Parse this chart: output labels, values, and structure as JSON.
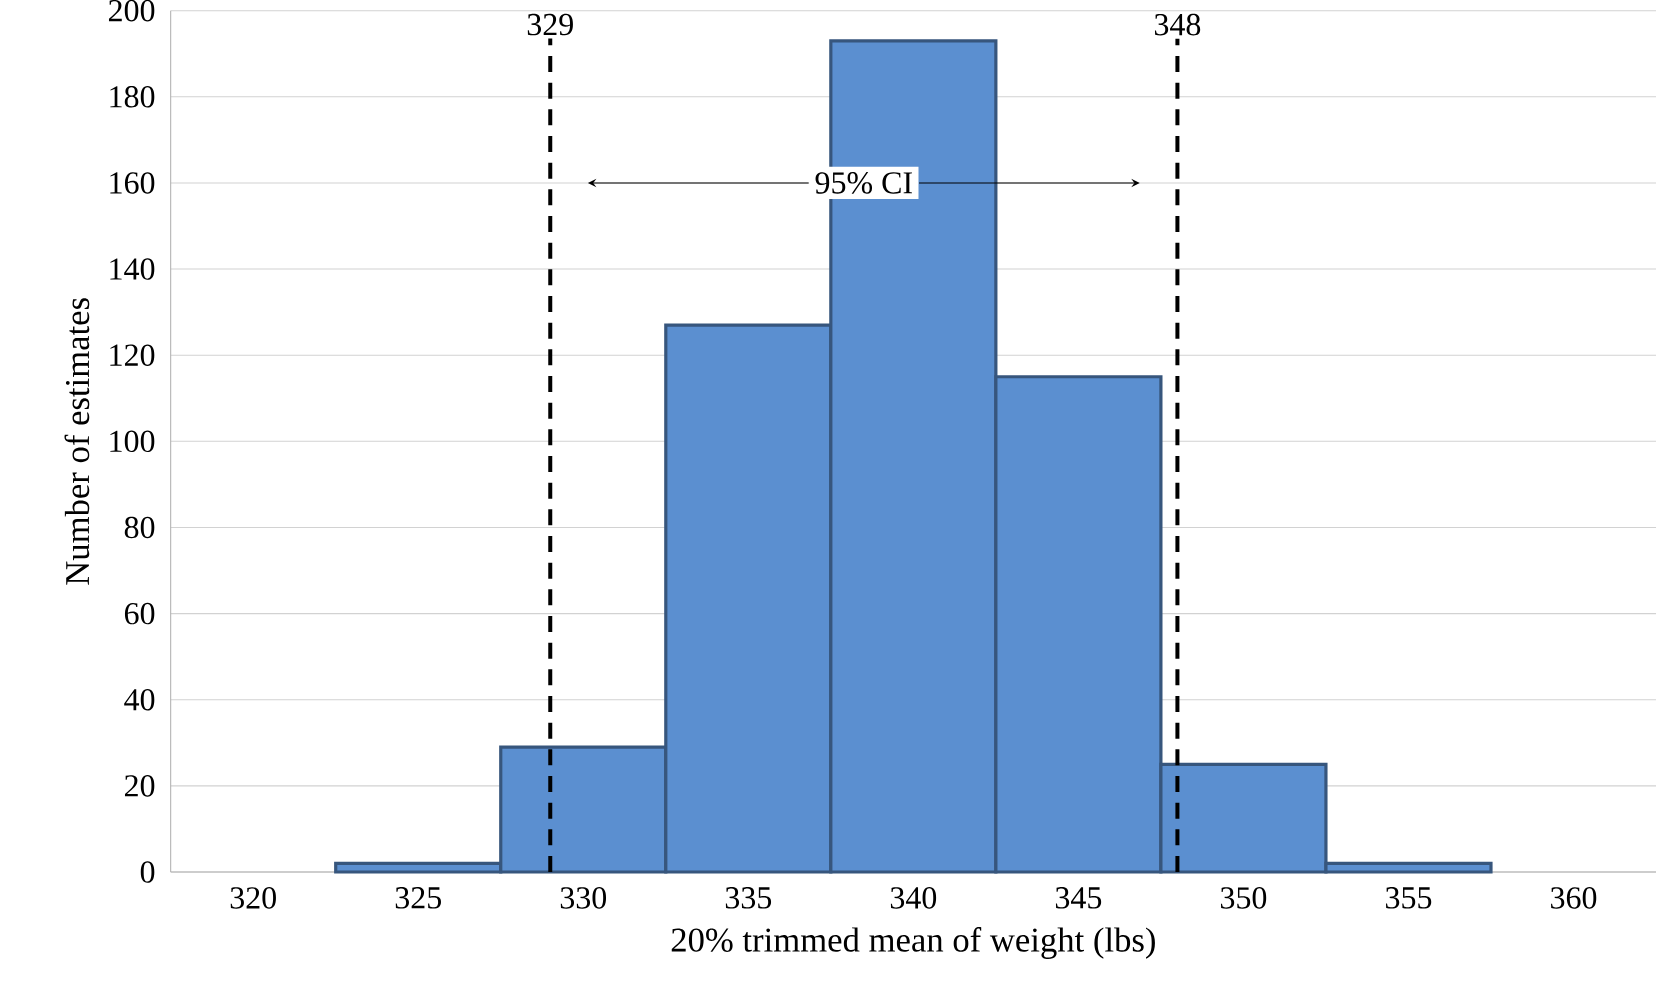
{
  "chart_data": {
    "type": "histogram",
    "xlabel": "20% trimmed mean of weight (lbs)",
    "ylabel": "Number of estimates",
    "bins": [
      322.5,
      327.5,
      332.5,
      337.5,
      342.5,
      347.5,
      352.5,
      357.5
    ],
    "values": [
      2,
      29,
      127,
      193,
      115,
      25,
      2
    ],
    "color": "#5b8fd0",
    "xlim": [
      317.5,
      362.5
    ],
    "xticks": [
      320,
      325,
      330,
      335,
      340,
      345,
      350,
      355,
      360
    ],
    "ylim": [
      0,
      200
    ],
    "yticks": [
      0,
      20,
      40,
      60,
      80,
      100,
      120,
      140,
      160,
      180,
      200
    ],
    "grid": "y",
    "ref_lines": [
      {
        "axis": "x",
        "value": 329,
        "label": "329",
        "line_style": "dashed"
      },
      {
        "axis": "x",
        "value": 348,
        "label": "348",
        "line_style": "dashed"
      }
    ],
    "annotations": [
      "95% CI"
    ]
  }
}
